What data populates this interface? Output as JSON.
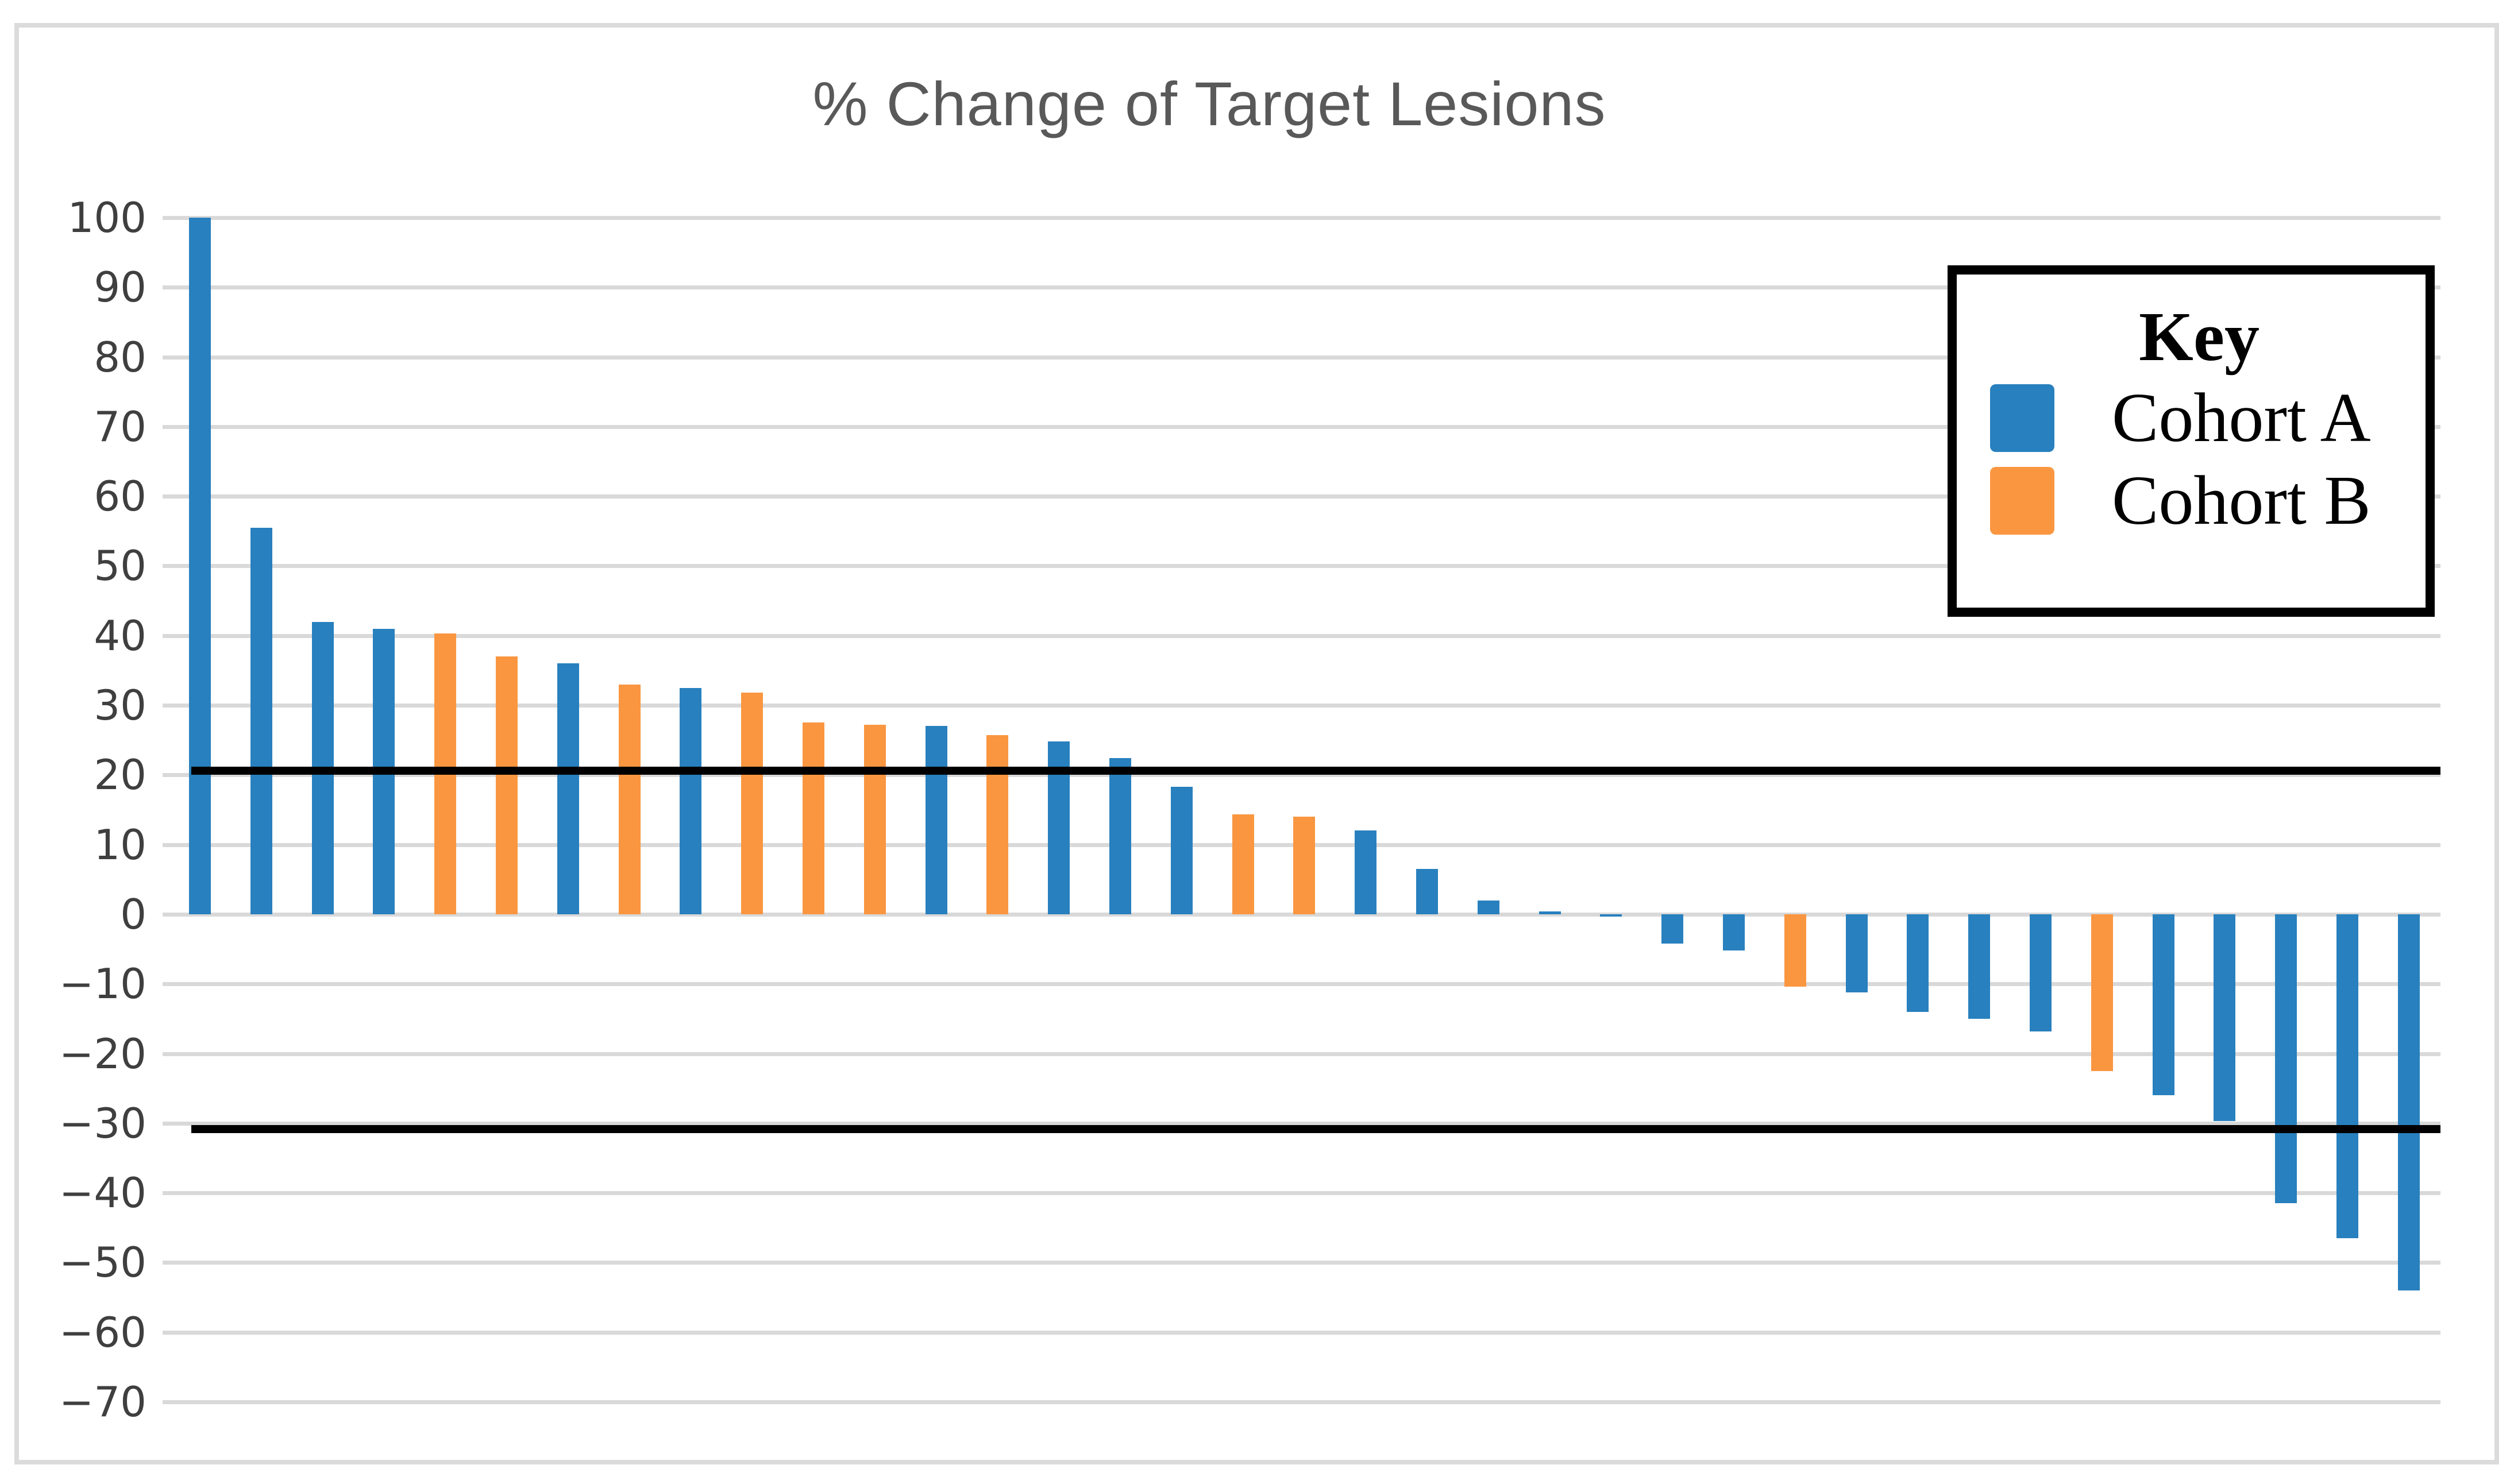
{
  "figure": {
    "title": "% Change of Target Lesions"
  },
  "legend": {
    "title": "Key",
    "entries": [
      {
        "label": "Cohort A",
        "color": "#2880BE"
      },
      {
        "label": "Cohort B",
        "color": "#FA9640"
      }
    ]
  },
  "colors": {
    "cohort_a_blue": "#2880BE",
    "cohort_b_orange": "#FA9640",
    "gridline_gray": "#D9D9D9",
    "figure_border_gray": "#DBDBDB",
    "title_gray": "#595959",
    "tick_label_gray": "#3F3F3F",
    "threshold_black": "#000000"
  },
  "chart_data": {
    "type": "bar",
    "title": "% Change of Target Lesions",
    "xlabel": "",
    "ylabel": "",
    "ylim": [
      -70,
      100
    ],
    "grid": true,
    "legend_position": "top-right",
    "threshold_lines": [
      20,
      -30
    ],
    "yticks": [
      {
        "value": 100,
        "label": "100"
      },
      {
        "value": 90,
        "label": "90"
      },
      {
        "value": 80,
        "label": "80"
      },
      {
        "value": 70,
        "label": "70"
      },
      {
        "value": 60,
        "label": "60"
      },
      {
        "value": 50,
        "label": "50"
      },
      {
        "value": 40,
        "label": "40"
      },
      {
        "value": 30,
        "label": "30"
      },
      {
        "value": 20,
        "label": "20"
      },
      {
        "value": 10,
        "label": "10"
      },
      {
        "value": 0,
        "label": "0"
      },
      {
        "value": -10,
        "label": "−10"
      },
      {
        "value": -20,
        "label": "−20"
      },
      {
        "value": -30,
        "label": "−30"
      },
      {
        "value": -40,
        "label": "−40"
      },
      {
        "value": -50,
        "label": "−50"
      },
      {
        "value": -60,
        "label": "−60"
      },
      {
        "value": -70,
        "label": "−70"
      }
    ],
    "bars": [
      {
        "value": 100,
        "cohort": "Cohort A"
      },
      {
        "value": 55.5,
        "cohort": "Cohort A"
      },
      {
        "value": 42,
        "cohort": "Cohort A"
      },
      {
        "value": 41,
        "cohort": "Cohort A"
      },
      {
        "value": 40.3,
        "cohort": "Cohort B"
      },
      {
        "value": 37,
        "cohort": "Cohort B"
      },
      {
        "value": 36,
        "cohort": "Cohort A"
      },
      {
        "value": 33,
        "cohort": "Cohort B"
      },
      {
        "value": 32.5,
        "cohort": "Cohort A"
      },
      {
        "value": 31.8,
        "cohort": "Cohort B"
      },
      {
        "value": 27.5,
        "cohort": "Cohort B"
      },
      {
        "value": 27.2,
        "cohort": "Cohort B"
      },
      {
        "value": 27,
        "cohort": "Cohort A"
      },
      {
        "value": 25.7,
        "cohort": "Cohort B"
      },
      {
        "value": 24.8,
        "cohort": "Cohort A"
      },
      {
        "value": 22.4,
        "cohort": "Cohort A"
      },
      {
        "value": 18.3,
        "cohort": "Cohort A"
      },
      {
        "value": 14.3,
        "cohort": "Cohort B"
      },
      {
        "value": 14,
        "cohort": "Cohort B"
      },
      {
        "value": 12,
        "cohort": "Cohort A"
      },
      {
        "value": 6.5,
        "cohort": "Cohort A"
      },
      {
        "value": 2,
        "cohort": "Cohort A"
      },
      {
        "value": 0.4,
        "cohort": "Cohort A"
      },
      {
        "value": -0.2,
        "cohort": "Cohort A"
      },
      {
        "value": -4.2,
        "cohort": "Cohort A"
      },
      {
        "value": -5.2,
        "cohort": "Cohort A"
      },
      {
        "value": -10.4,
        "cohort": "Cohort B"
      },
      {
        "value": -11.2,
        "cohort": "Cohort A"
      },
      {
        "value": -14,
        "cohort": "Cohort A"
      },
      {
        "value": -15,
        "cohort": "Cohort A"
      },
      {
        "value": -16.8,
        "cohort": "Cohort A"
      },
      {
        "value": -22.5,
        "cohort": "Cohort B"
      },
      {
        "value": -26,
        "cohort": "Cohort A"
      },
      {
        "value": -29.7,
        "cohort": "Cohort A"
      },
      {
        "value": -41.5,
        "cohort": "Cohort A"
      },
      {
        "value": -46.5,
        "cohort": "Cohort A"
      },
      {
        "value": -54,
        "cohort": "Cohort A"
      }
    ]
  }
}
